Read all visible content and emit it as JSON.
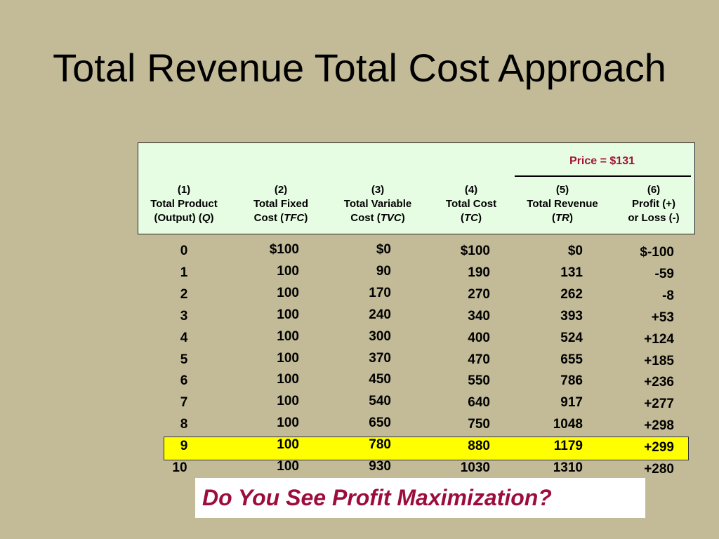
{
  "title": "Total Revenue Total Cost Approach",
  "price_label": "Price = $131",
  "columns": [
    {
      "num": "(1)",
      "line1": "Total Product",
      "line2_pre": "(Output) (",
      "abbr": "Q",
      "line2_post": ")"
    },
    {
      "num": "(2)",
      "line1": "Total Fixed",
      "line2_pre": "Cost (",
      "abbr": "TFC",
      "line2_post": ")"
    },
    {
      "num": "(3)",
      "line1": "Total Variable",
      "line2_pre": "Cost (",
      "abbr": "TVC",
      "line2_post": ")"
    },
    {
      "num": "(4)",
      "line1": "Total Cost",
      "line2_pre": "(",
      "abbr": "TC",
      "line2_post": ")"
    },
    {
      "num": "(5)",
      "line1": "Total Revenue",
      "line2_pre": "(",
      "abbr": "TR",
      "line2_post": ")"
    },
    {
      "num": "(6)",
      "line1": "Profit (+)",
      "line2_pre": "or Loss (-)",
      "abbr": "",
      "line2_post": ""
    }
  ],
  "rows": [
    [
      "0",
      "$100",
      "$0",
      "$100",
      "$0",
      "$-100"
    ],
    [
      "1",
      "100",
      "90",
      "190",
      "131",
      "-59"
    ],
    [
      "2",
      "100",
      "170",
      "270",
      "262",
      "-8"
    ],
    [
      "3",
      "100",
      "240",
      "340",
      "393",
      "+53"
    ],
    [
      "4",
      "100",
      "300",
      "400",
      "524",
      "+124"
    ],
    [
      "5",
      "100",
      "370",
      "470",
      "655",
      "+185"
    ],
    [
      "6",
      "100",
      "450",
      "550",
      "786",
      "+236"
    ],
    [
      "7",
      "100",
      "540",
      "640",
      "917",
      "+277"
    ],
    [
      "8",
      "100",
      "650",
      "750",
      "1048",
      "+298"
    ],
    [
      "9",
      "100",
      "780",
      "880",
      "1179",
      "+299"
    ],
    [
      "10",
      "100",
      "930",
      "1030",
      "1310",
      "+280"
    ]
  ],
  "highlighted_row": 9,
  "callout": "Do You See Profit Maximization?",
  "colors": {
    "background": "#c3bb98",
    "header_box": "#e6fde3",
    "highlight": "#ffff00",
    "accent": "#a3123a"
  }
}
